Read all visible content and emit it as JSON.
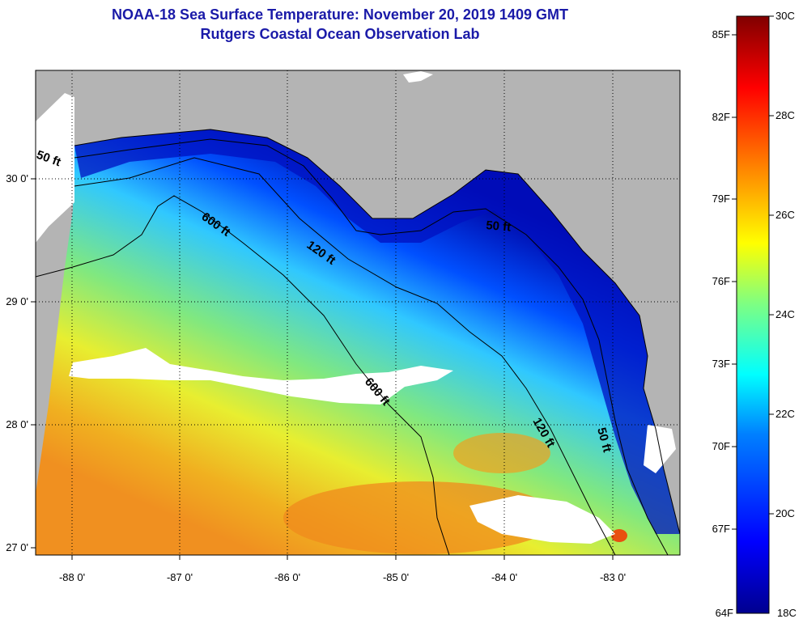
{
  "title": "NOAA-18 Sea Surface Temperature:  November 20, 2019 1409 GMT",
  "subtitle": "Rutgers Coastal Ocean Observation Lab",
  "lat_ticks": [
    "30 0'",
    "29 0'",
    "28 0'",
    "27 0'"
  ],
  "lon_ticks": [
    "-88 0'",
    "-87 0'",
    "-86 0'",
    "-85 0'",
    "-84 0'",
    "-83 0'"
  ],
  "contours": {
    "c600a": "600 ft",
    "c600b": "600 ft",
    "c120a": "120 ft",
    "c120b": "120 ft",
    "c50a": "50 ft",
    "c50b": "50 ft",
    "c50c": "50 ft"
  },
  "colorbar": {
    "fahrenheit": [
      "85F",
      "82F",
      "79F",
      "76F",
      "73F",
      "70F",
      "67F",
      "64F"
    ],
    "celsius": [
      "30C",
      "28C",
      "26C",
      "24C",
      "22C",
      "20C",
      "18C"
    ]
  },
  "colors": {
    "title": "#1a1aa8",
    "land": "#b4b4b4",
    "cloud": "#ffffff",
    "sst_cold": "#00008f",
    "sst_warm": "#800000"
  }
}
